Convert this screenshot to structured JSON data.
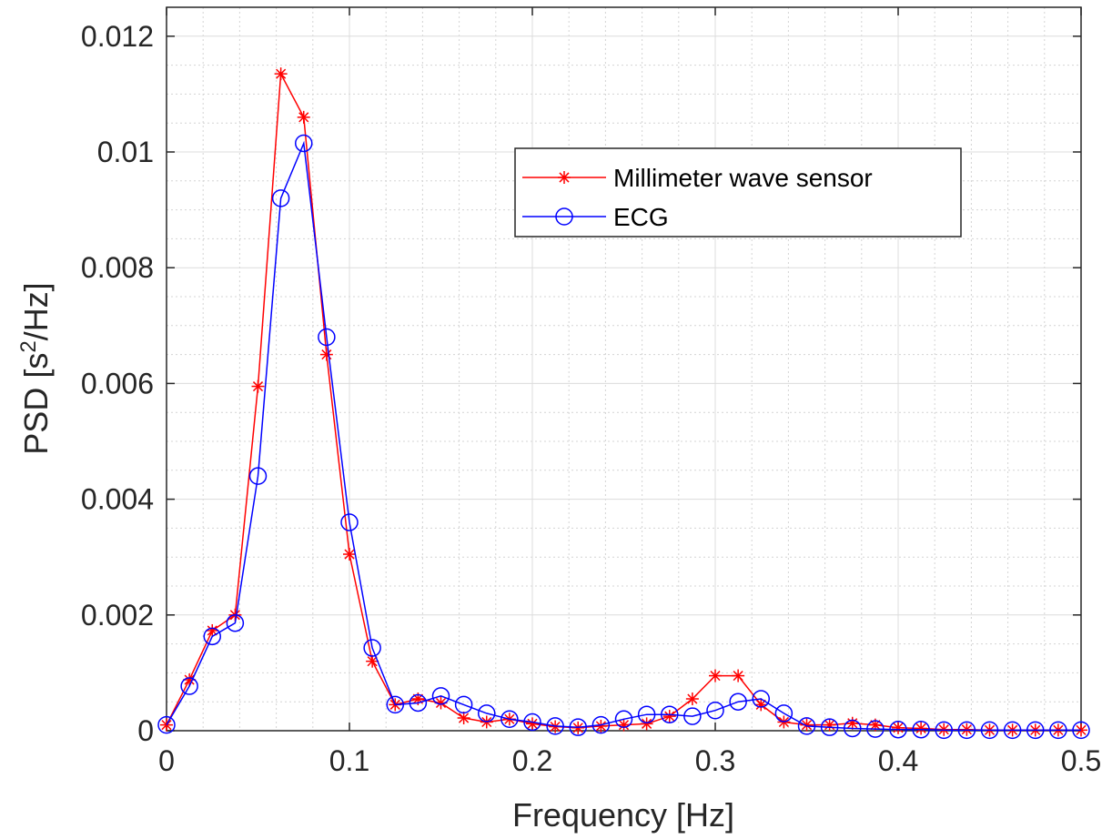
{
  "chart_data": {
    "type": "line",
    "title": "",
    "xlabel": "Frequency [Hz]",
    "ylabel": {
      "prefix": "PSD [s",
      "sup": "2",
      "suffix": "/Hz]"
    },
    "xlim": [
      0,
      0.5
    ],
    "ylim": [
      0,
      0.0125
    ],
    "xticks": [
      0,
      0.1,
      0.2,
      0.3,
      0.4,
      0.5
    ],
    "xtick_labels": [
      "0",
      "0.1",
      "0.2",
      "0.3",
      "0.4",
      "0.5"
    ],
    "yticks": [
      0,
      0.002,
      0.004,
      0.006,
      0.008,
      0.01,
      0.012
    ],
    "ytick_labels": [
      "0",
      "0.002",
      "0.004",
      "0.006",
      "0.008",
      "0.01",
      "0.012"
    ],
    "grid": true,
    "minor_grid": true,
    "legend_position": "upper-center-right",
    "x": [
      0,
      0.0125,
      0.025,
      0.0375,
      0.05,
      0.0625,
      0.075,
      0.0875,
      0.1,
      0.1125,
      0.125,
      0.1375,
      0.15,
      0.1625,
      0.175,
      0.1875,
      0.2,
      0.2125,
      0.225,
      0.2375,
      0.25,
      0.2625,
      0.275,
      0.2875,
      0.3,
      0.3125,
      0.325,
      0.3375,
      0.35,
      0.3625,
      0.375,
      0.3875,
      0.4,
      0.4125,
      0.425,
      0.4375,
      0.45,
      0.4625,
      0.475,
      0.4875,
      0.5
    ],
    "series": [
      {
        "name": "Millimeter wave sensor",
        "color": "#ff0000",
        "marker": "asterisk",
        "values": [
          0.0001,
          0.00088,
          0.00173,
          0.002,
          0.00595,
          0.01135,
          0.0106,
          0.0065,
          0.00305,
          0.0012,
          0.00045,
          0.00055,
          0.00048,
          0.00022,
          0.00015,
          0.0002,
          0.00012,
          7e-05,
          5e-05,
          8e-05,
          0.0001,
          0.00012,
          0.00025,
          0.00055,
          0.00095,
          0.00095,
          0.00045,
          0.00015,
          0.0001,
          0.0001,
          0.00013,
          0.0001,
          5e-05,
          4e-05,
          2e-05,
          2e-05,
          1e-05,
          1e-05,
          1e-05,
          1e-05,
          1e-05
        ]
      },
      {
        "name": "ECG",
        "color": "#0000ff",
        "marker": "circle",
        "values": [
          0.0001,
          0.00077,
          0.00163,
          0.00186,
          0.0044,
          0.0092,
          0.01015,
          0.0068,
          0.0036,
          0.00143,
          0.00045,
          0.00048,
          0.0006,
          0.00045,
          0.0003,
          0.0002,
          0.00015,
          8e-05,
          6e-05,
          0.0001,
          0.0002,
          0.00028,
          0.00028,
          0.00025,
          0.00035,
          0.0005,
          0.00055,
          0.0003,
          8e-05,
          6e-05,
          4e-05,
          3e-05,
          2e-05,
          2e-05,
          1e-05,
          1e-05,
          1e-05,
          1e-05,
          1e-05,
          1e-05,
          1e-05
        ]
      }
    ]
  }
}
